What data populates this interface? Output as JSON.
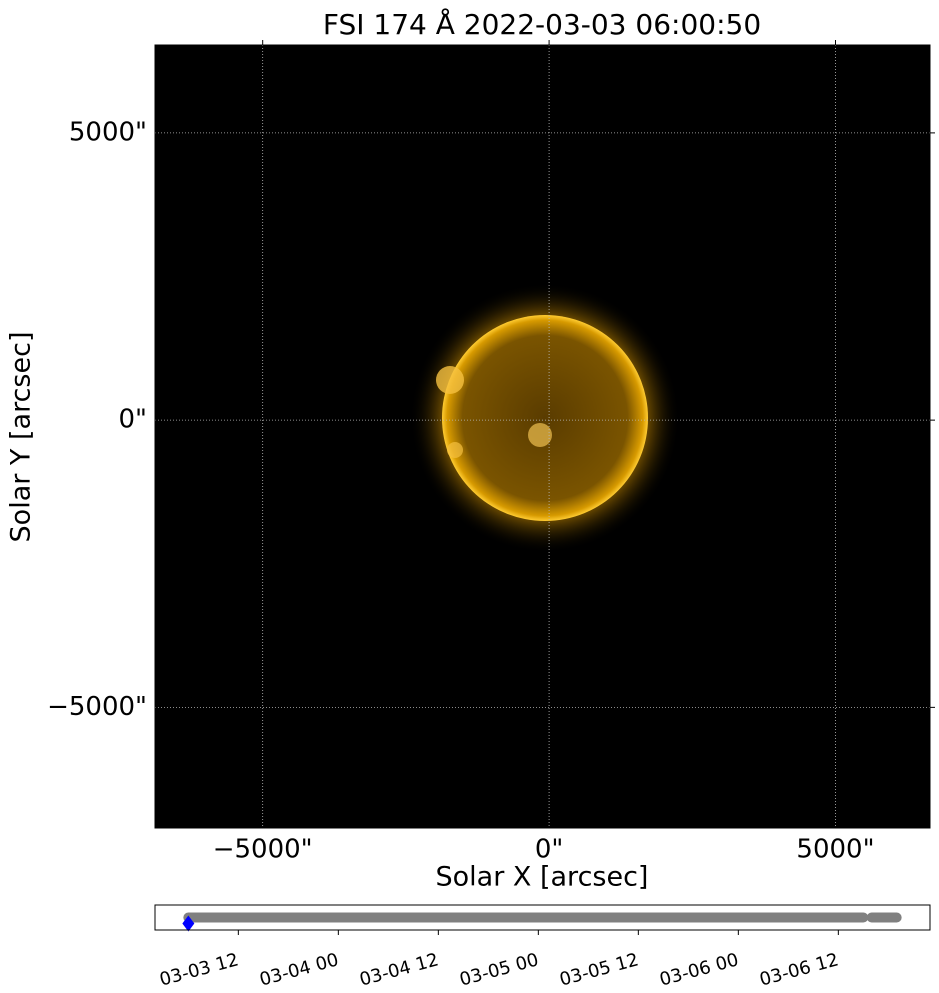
{
  "chart_data": [
    {
      "type": "image",
      "title": "FSI 174 Å 2022-03-03 06:00:50",
      "x_label": "Solar X [arcsec]",
      "y_label": "Solar Y [arcsec]",
      "xlim": [
        -6880,
        6650
      ],
      "ylim": [
        -7100,
        6530
      ],
      "xticks": [
        {
          "value": -5000,
          "label": "−5000\""
        },
        {
          "value": 0,
          "label": "0\""
        },
        {
          "value": 5000,
          "label": "5000\""
        }
      ],
      "yticks": [
        {
          "value": -5000,
          "label": "−5000\""
        },
        {
          "value": 0,
          "label": "0\""
        },
        {
          "value": 5000,
          "label": "5000\""
        }
      ],
      "grid": true
    },
    {
      "type": "timeline",
      "xlim": [
        "03-03 02",
        "03-06 23"
      ],
      "xticks": [
        "03-03 12",
        "03-04 00",
        "03-04 12",
        "03-05 00",
        "03-05 12",
        "03-06 00",
        "03-06 12"
      ],
      "spans": [
        [
          "03-03 06",
          "03-06 15"
        ],
        [
          "03-06 16",
          "03-06 19"
        ]
      ],
      "span_color": "#808080",
      "current": "03-03 06",
      "current_color": "#0000ff"
    }
  ]
}
